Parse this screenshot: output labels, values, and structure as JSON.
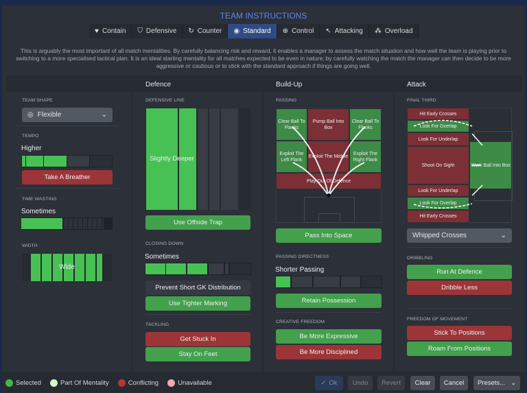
{
  "title": "TEAM INSTRUCTIONS",
  "tabs": [
    {
      "label": "Contain",
      "icon": "heart-shield-icon"
    },
    {
      "label": "Defensive",
      "icon": "shield-icon"
    },
    {
      "label": "Counter",
      "icon": "counter-icon"
    },
    {
      "label": "Standard",
      "icon": "standard-icon",
      "active": true
    },
    {
      "label": "Control",
      "icon": "control-icon"
    },
    {
      "label": "Attacking",
      "icon": "attacking-arrow-icon"
    },
    {
      "label": "Overload",
      "icon": "overload-icon"
    }
  ],
  "description": "This is arguably the most important of all match mentalities. By carefully balancing risk and reward, it enables a manager to assess the match situation and how well the team is playing prior to switching to a more specialised tactical plan. It is an ideal starting mentality for all matches expected to be even in nature; by carefully watching the match the manager can then decide to be more aggressive or cautious or to stick with the standard approach if things are going well.",
  "columns": {
    "defence": "Defence",
    "buildup": "Build-Up",
    "attack": "Attack"
  },
  "general": {
    "team_shape": {
      "label": "TEAM SHAPE",
      "value": "Flexible"
    },
    "tempo": {
      "label": "TEMPO",
      "value": "Higher",
      "level": 0.5,
      "button": "Take A Breather"
    },
    "time_wasting": {
      "label": "TIME WASTING",
      "value": "Sometimes",
      "level": 0.45
    },
    "width": {
      "label": "WIDTH",
      "value": "Wide",
      "level": 0.75
    }
  },
  "defence": {
    "defensive_line": {
      "label": "DEFENSIVE LINE",
      "value": "Slightly Deeper",
      "level": 0.5,
      "button": "Use Offside Trap"
    },
    "closing_down": {
      "label": "CLOSING DOWN",
      "value": "Sometimes",
      "level": 0.6,
      "buttons": [
        "Prevent Short GK Distribution",
        "Use Tighter Marking"
      ]
    },
    "tackling": {
      "label": "TACKLING",
      "buttons": [
        "Get Stuck In",
        "Stay On Feet"
      ]
    }
  },
  "buildup": {
    "passing": {
      "label": "PASSING",
      "zones": [
        "Clear Ball To Flanks",
        "Pump Ball Into Box",
        "Clear Ball To Flanks",
        "Exploit The Left Flank",
        "Exploit The Middle",
        "Exploit The Right Flank",
        "Play Out Of Defence"
      ],
      "button": "Pass Into Space"
    },
    "directness": {
      "label": "PASSING DIRECTNESS",
      "value": "Shorter Passing",
      "level": 0.15,
      "button": "Retain Possession"
    },
    "creative": {
      "label": "CREATIVE FREEDOM",
      "buttons": [
        "Be More Expressive",
        "Be More Disciplined"
      ]
    }
  },
  "attack": {
    "final_third": {
      "label": "FINAL THIRD",
      "zones": [
        "Hit Early Crosses",
        "Look For Overlap",
        "Look For Underlap",
        "Shoot On Sight",
        "Look For Underlap",
        "Look For Overlap",
        "Hit Early Crosses",
        "Work Ball Into Box"
      ],
      "dropdown": "Whipped Crosses"
    },
    "dribbling": {
      "label": "DRIBBLING",
      "buttons": [
        "Run At Defence",
        "Dribble Less"
      ]
    },
    "movement": {
      "label": "FREEDOM OF MOVEMENT",
      "buttons": [
        "Stick To Positions",
        "Roam From Positions"
      ]
    }
  },
  "legend": [
    {
      "label": "Selected",
      "color": "#43b74e"
    },
    {
      "label": "Part Of Mentality",
      "color": "#d8f7c8"
    },
    {
      "label": "Conflicting",
      "color": "#b83436"
    },
    {
      "label": "Unavailable",
      "color": "#f0a8a8"
    }
  ],
  "footer": {
    "ok": "Ok",
    "undo": "Undo",
    "revert": "Revert",
    "clear": "Clear",
    "cancel": "Cancel",
    "presets": "Presets..."
  },
  "colors": {
    "accent": "#5b86ee",
    "selected": "#43a04c",
    "conflicting": "#9c3538",
    "active_tab": "#2f4b86"
  }
}
